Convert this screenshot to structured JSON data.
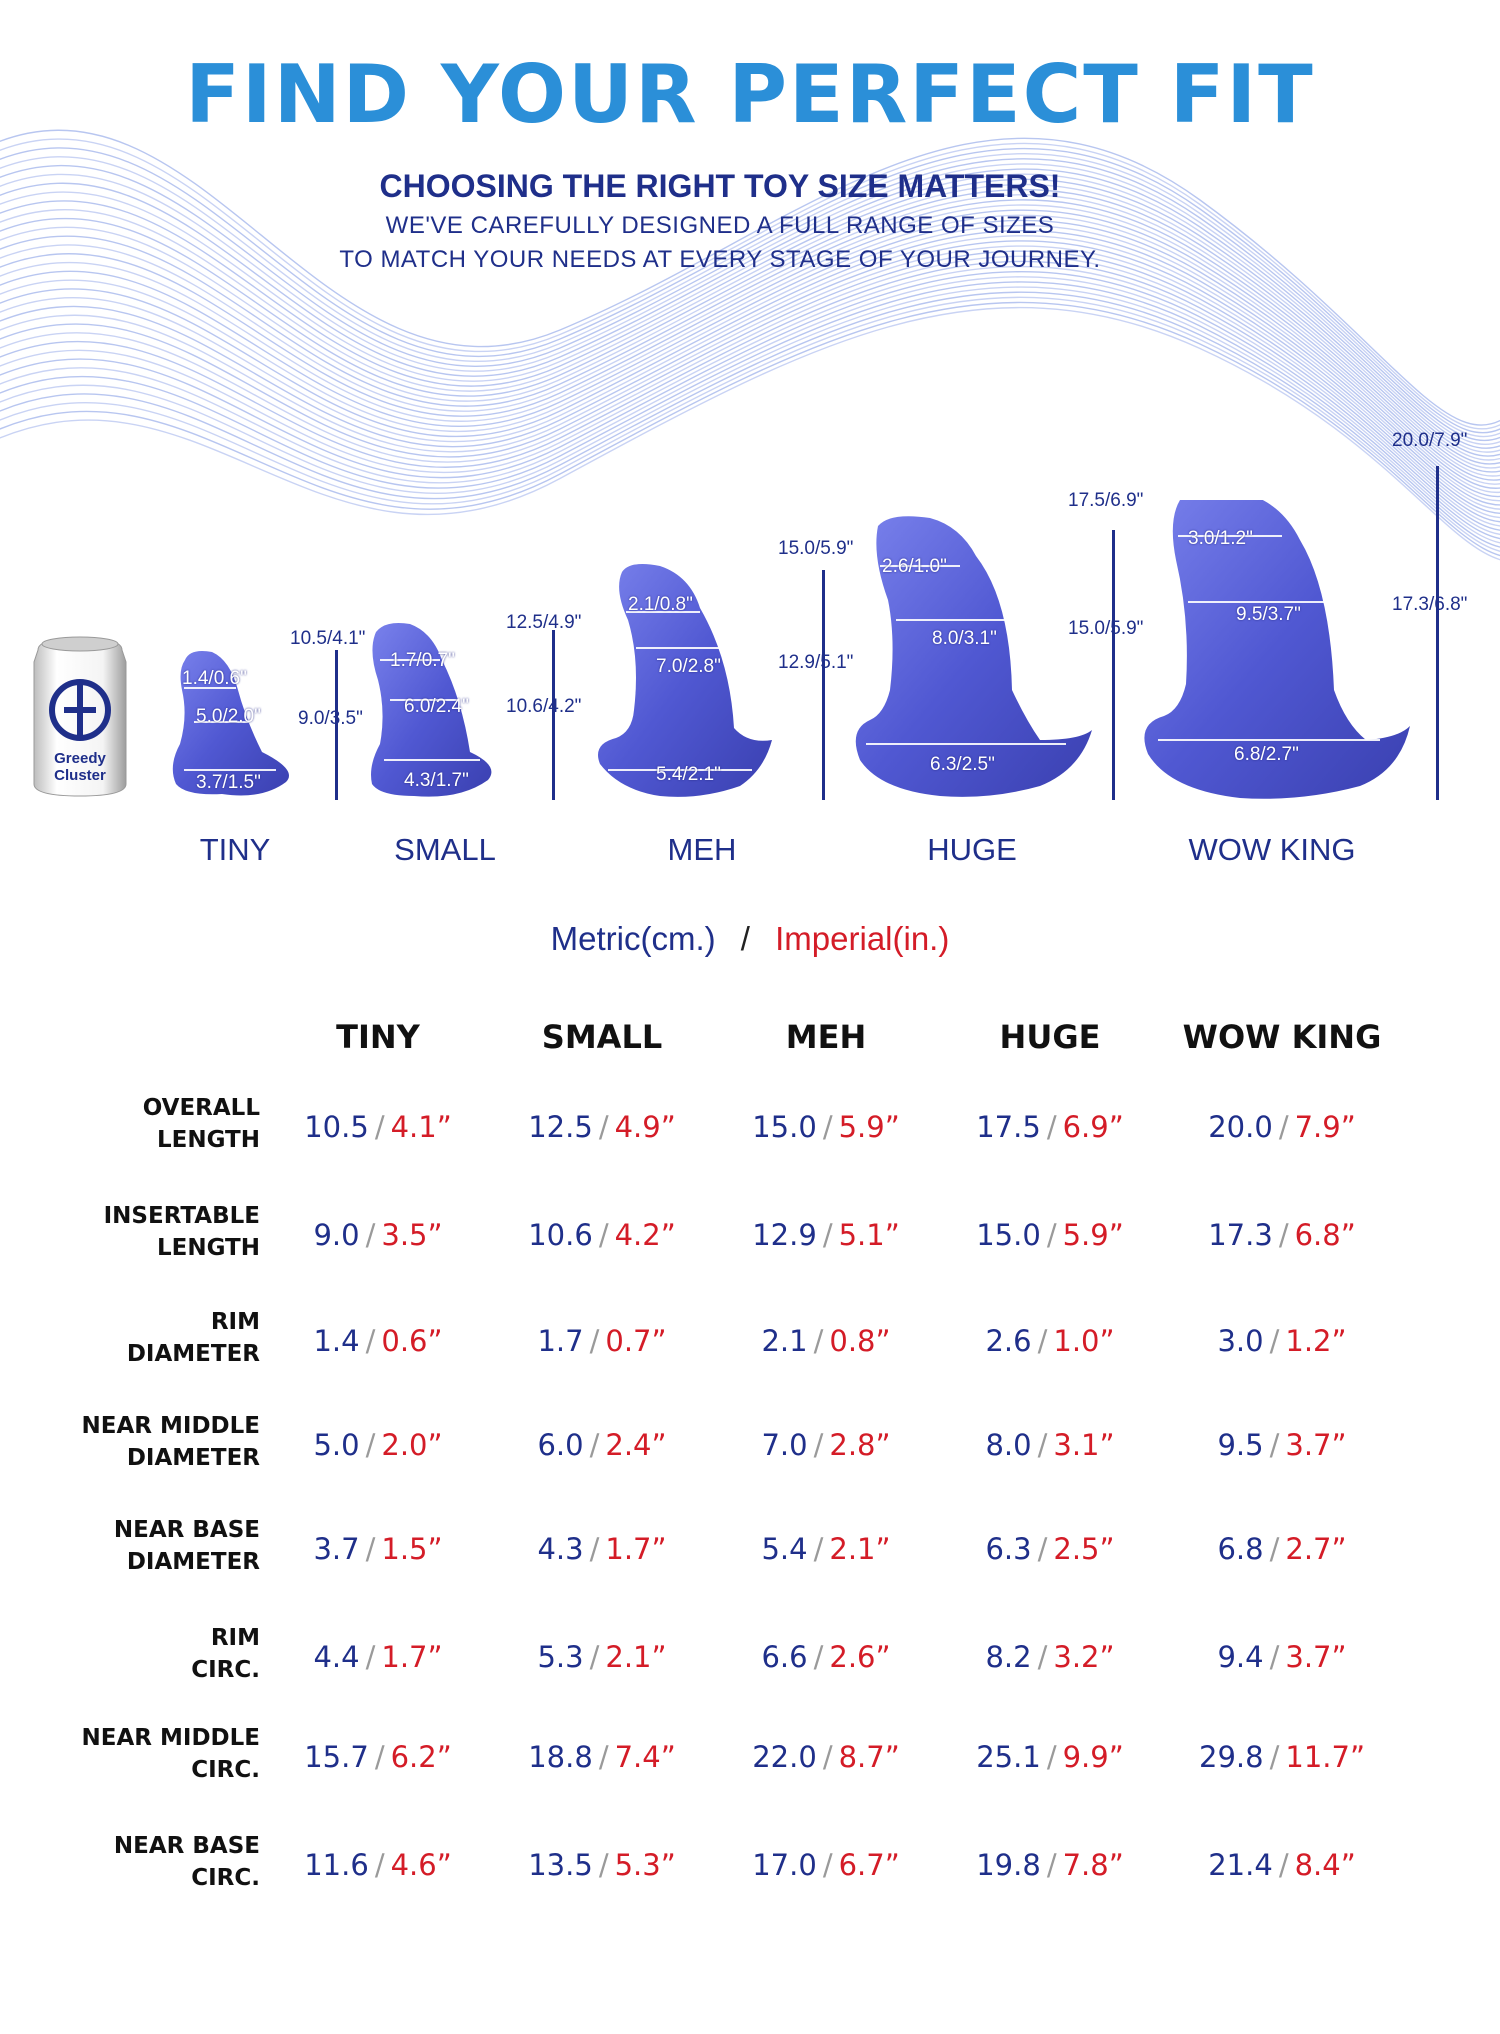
{
  "header": {
    "title": "FIND YOUR PERFECT FIT",
    "subtitle": "CHOOSING THE RIGHT TOY SIZE MATTERS!",
    "intro_line1": "WE'VE CAREFULLY DESIGNED A FULL RANGE OF SIZES",
    "intro_line2": "TO MATCH YOUR NEEDS AT EVERY STAGE OF YOUR JOURNEY."
  },
  "can": {
    "brand_line1": "Greedy",
    "brand_line2": "Cluster"
  },
  "products": [
    {
      "name": "TINY",
      "rim": "1.4/0.6\"",
      "middle": "5.0/2.0\"",
      "base": "3.7/1.5\"",
      "overall": "10.5/4.1\"",
      "insertable": "9.0/3.5\""
    },
    {
      "name": "SMALL",
      "rim": "1.7/0.7\"",
      "middle": "6.0/2.4\"",
      "base": "4.3/1.7\"",
      "overall": "12.5/4.9\"",
      "insertable": "10.6/4.2\""
    },
    {
      "name": "MEH",
      "rim": "2.1/0.8\"",
      "middle": "7.0/2.8\"",
      "base": "5.4/2.1\"",
      "overall": "15.0/5.9\"",
      "insertable": "12.9/5.1\""
    },
    {
      "name": "HUGE",
      "rim": "2.6/1.0\"",
      "middle": "8.0/3.1\"",
      "base": "6.3/2.5\"",
      "overall": "17.5/6.9\"",
      "insertable": "15.0/5.9\""
    },
    {
      "name": "WOW KING",
      "rim": "3.0/1.2\"",
      "middle": "9.5/3.7\"",
      "base": "6.8/2.7\"",
      "overall": "20.0/7.9\"",
      "insertable": "17.3/6.8\""
    }
  ],
  "units": {
    "metric": "Metric(cm.)",
    "separator": "/",
    "imperial": "Imperial(in.)"
  },
  "table": {
    "columns": [
      "TINY",
      "SMALL",
      "MEH",
      "HUGE",
      "WOW KING"
    ],
    "rows": [
      {
        "label1": "OVERALL",
        "label2": "LENGTH",
        "values": [
          [
            "10.5",
            "4.1”"
          ],
          [
            "12.5",
            "4.9”"
          ],
          [
            "15.0",
            "5.9”"
          ],
          [
            "17.5",
            "6.9”"
          ],
          [
            "20.0",
            "7.9”"
          ]
        ]
      },
      {
        "label1": "INSERTABLE",
        "label2": "LENGTH",
        "values": [
          [
            "9.0",
            "3.5”"
          ],
          [
            "10.6",
            "4.2”"
          ],
          [
            "12.9",
            "5.1”"
          ],
          [
            "15.0",
            "5.9”"
          ],
          [
            "17.3",
            "6.8”"
          ]
        ]
      },
      {
        "label1": "RIM",
        "label2": "DIAMETER",
        "values": [
          [
            "1.4",
            "0.6”"
          ],
          [
            "1.7",
            "0.7”"
          ],
          [
            "2.1",
            "0.8”"
          ],
          [
            "2.6",
            "1.0”"
          ],
          [
            "3.0",
            "1.2”"
          ]
        ]
      },
      {
        "label1": "NEAR MIDDLE",
        "label2": "DIAMETER",
        "values": [
          [
            "5.0",
            "2.0”"
          ],
          [
            "6.0",
            "2.4”"
          ],
          [
            "7.0",
            "2.8”"
          ],
          [
            "8.0",
            "3.1”"
          ],
          [
            "9.5",
            "3.7”"
          ]
        ]
      },
      {
        "label1": "NEAR BASE",
        "label2": "DIAMETER",
        "values": [
          [
            "3.7",
            "1.5”"
          ],
          [
            "4.3",
            "1.7”"
          ],
          [
            "5.4",
            "2.1”"
          ],
          [
            "6.3",
            "2.5”"
          ],
          [
            "6.8",
            "2.7”"
          ]
        ]
      },
      {
        "label1": "RIM",
        "label2": "CIRC.",
        "values": [
          [
            "4.4",
            "1.7”"
          ],
          [
            "5.3",
            "2.1”"
          ],
          [
            "6.6",
            "2.6”"
          ],
          [
            "8.2",
            "3.2”"
          ],
          [
            "9.4",
            "3.7”"
          ]
        ]
      },
      {
        "label1": "NEAR MIDDLE",
        "label2": "CIRC.",
        "values": [
          [
            "15.7",
            "6.2”"
          ],
          [
            "18.8",
            "7.4”"
          ],
          [
            "22.0",
            "8.7”"
          ],
          [
            "25.1",
            "9.9”"
          ],
          [
            "29.8",
            "11.7”"
          ]
        ]
      },
      {
        "label1": "NEAR BASE",
        "label2": "CIRC.",
        "values": [
          [
            "11.6",
            "4.6”"
          ],
          [
            "13.5",
            "5.3”"
          ],
          [
            "17.0",
            "6.7”"
          ],
          [
            "19.8",
            "7.8”"
          ],
          [
            "21.4",
            "8.4”"
          ]
        ]
      }
    ]
  },
  "colors": {
    "navy": "#1f2f8a",
    "red": "#d41c27",
    "title_blue": "#2b8fd8",
    "product_purple": "#5a63d8"
  }
}
